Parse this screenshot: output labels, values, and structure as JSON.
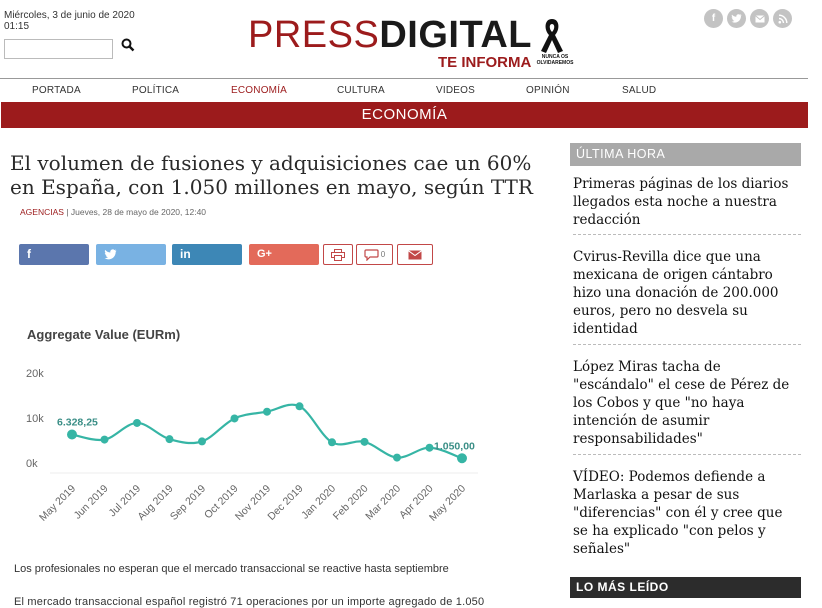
{
  "header": {
    "date": "Miércoles, 3 de junio de 2020",
    "time": "01:15",
    "logo_press": "PRESS",
    "logo_digital": "DIGITAL",
    "logo_sub": "TE INFORMA",
    "ribbon_text": "NUNCA OS OLVIDAREMOS",
    "search": {
      "value": "",
      "placeholder": ""
    },
    "social_icons": [
      "facebook-icon",
      "twitter-icon",
      "email-icon",
      "rss-icon"
    ]
  },
  "nav": {
    "items": [
      {
        "label": "PORTADA"
      },
      {
        "label": "POLÍTICA"
      },
      {
        "label": "ECONOMÍA"
      },
      {
        "label": "CULTURA"
      },
      {
        "label": "VIDEOS"
      },
      {
        "label": "OPINIÓN"
      },
      {
        "label": "SALUD"
      }
    ],
    "active": "ECONOMÍA"
  },
  "section": {
    "title": "ECONOMÍA"
  },
  "article": {
    "headline": "El volumen de fusiones y adquisiciones cae un 60% en España, con 1.050 millones en mayo, según TTR",
    "source": "AGENCIAS",
    "dateline": " | Jueves, 28 de mayo de 2020, 12:40",
    "comment_count": "0",
    "paragraph1": "Los profesionales no esperan que el mercado transaccional se reactive hasta septiembre",
    "paragraph2": "El mercado transaccional español registró 71 operaciones por un importe agregado de 1.050"
  },
  "chart_data": {
    "type": "line",
    "title": "Aggregate Value (EURm)",
    "categories": [
      "May 2019",
      "Jun 2019",
      "Jul 2019",
      "Aug 2019",
      "Sep 2019",
      "Oct 2019",
      "Nov 2019",
      "Dec 2019",
      "Jan 2020",
      "Feb 2020",
      "Mar 2020",
      "Apr 2020",
      "May 2020"
    ],
    "series": [
      {
        "values": [
          6328.25,
          5200,
          8900,
          5300,
          4800,
          9900,
          11400,
          12600,
          4600,
          4700,
          1200,
          3400,
          1050
        ]
      }
    ],
    "yticks": [
      "20k",
      "10k",
      "0k"
    ],
    "ylim": [
      0,
      20000
    ],
    "annotations": [
      {
        "index": 0,
        "text": "6.328,25"
      },
      {
        "index": 12,
        "text": "1.050,00"
      }
    ],
    "line_color": "#36b5a5",
    "grid": false
  },
  "sidebar": {
    "latest_title": "ÚLTIMA HORA",
    "items": [
      {
        "text": "Primeras páginas de los diarios llegados esta noche a nuestra redacción"
      },
      {
        "text": "Cvirus-Revilla dice que una mexicana de origen cántabro hizo una donación de 200.000 euros, pero no desvela su identidad"
      },
      {
        "text": "López Miras tacha de \"escándalo\" el cese de Pérez de los Cobos y que \"no haya intención de asumir responsabilidades\""
      },
      {
        "text": "VÍDEO: Podemos defiende a Marlaska a pesar de sus \"diferencias\" con él y cree que se ha explicado \"con pelos y señales\""
      }
    ],
    "most_read_title": "LO MÁS LEÍDO"
  },
  "colors": {
    "brand": "#9c1b1c",
    "sidebar_header": "#a9a9a9"
  }
}
